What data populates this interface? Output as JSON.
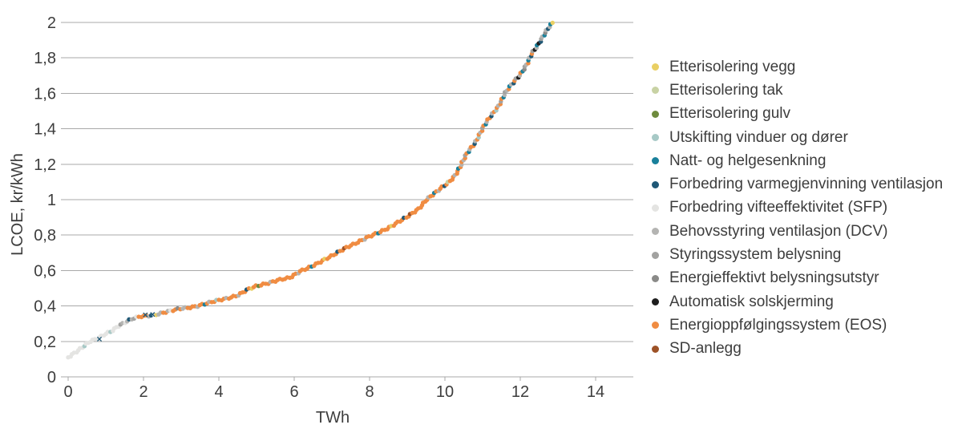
{
  "figure": {
    "background": "#ffffff",
    "text_color": "#3d3d3d",
    "grid_color": "#a9a9a9",
    "axis_color": "#a9a9a9"
  },
  "chart_data": {
    "type": "scatter",
    "title": "",
    "xlabel": "TWh",
    "ylabel": "LCOE, kr/kWh",
    "xlim": [
      0,
      15
    ],
    "ylim": [
      0,
      2
    ],
    "grid": "horizontal",
    "legend_position": "right",
    "x_tick_values": [
      0,
      2,
      4,
      6,
      8,
      10,
      12,
      14
    ],
    "x_tick_labels": [
      "0",
      "2",
      "4",
      "6",
      "8",
      "10",
      "12",
      "14"
    ],
    "y_tick_values": [
      0,
      0.2,
      0.4,
      0.6,
      0.8,
      1,
      1.2,
      1.4,
      1.6,
      1.8,
      2
    ],
    "y_tick_labels": [
      "0",
      "0,2",
      "0,4",
      "0,6",
      "0,8",
      "1",
      "1,2",
      "1,4",
      "1,6",
      "1,8",
      "2"
    ],
    "palette": {
      "vegg": "#e9cf63",
      "tak": "#c8d2a4",
      "gulv": "#6e8b3d",
      "vinduer": "#a7c9c6",
      "natt": "#19809b",
      "varme": "#1f5876",
      "sfp": "#e4e4e2",
      "dcv": "#b4b4b2",
      "styring": "#a2a2a0",
      "belysning": "#8a8a88",
      "sol": "#1d1d1d",
      "eos": "#f08c42",
      "sd": "#9d5227"
    },
    "legend": [
      {
        "label": "Etterisolering vegg",
        "color_key": "vegg"
      },
      {
        "label": "Etterisolering tak",
        "color_key": "tak"
      },
      {
        "label": "Etterisolering gulv",
        "color_key": "gulv"
      },
      {
        "label": "Utskifting vinduer og dører",
        "color_key": "vinduer"
      },
      {
        "label": "Natt- og helgesenkning",
        "color_key": "natt"
      },
      {
        "label": "Forbedring varmegjenvinning ventilasjon",
        "color_key": "varme"
      },
      {
        "label": "Forbedring vifteeffektivitet (SFP)",
        "color_key": "sfp"
      },
      {
        "label": "Behovsstyring ventilasjon (DCV)",
        "color_key": "dcv"
      },
      {
        "label": "Styringssystem belysning",
        "color_key": "styring"
      },
      {
        "label": "Energieffektivt belysningsutstyr",
        "color_key": "belysning"
      },
      {
        "label": "Automatisk solskjerming",
        "color_key": "sol"
      },
      {
        "label": "Energioppfølgingssystem (EOS)",
        "color_key": "eos"
      },
      {
        "label": "SD-anlegg",
        "color_key": "sd"
      }
    ],
    "curve_anchors": [
      [
        0,
        0.11
      ],
      [
        0.15,
        0.135
      ],
      [
        0.35,
        0.165
      ],
      [
        0.6,
        0.2
      ],
      [
        0.8,
        0.215
      ],
      [
        1.0,
        0.245
      ],
      [
        1.15,
        0.26
      ],
      [
        1.3,
        0.285
      ],
      [
        1.45,
        0.3
      ],
      [
        1.6,
        0.315
      ],
      [
        1.75,
        0.33
      ],
      [
        1.95,
        0.342
      ],
      [
        2.3,
        0.352
      ],
      [
        2.6,
        0.365
      ],
      [
        3.0,
        0.385
      ],
      [
        3.4,
        0.4
      ],
      [
        3.8,
        0.42
      ],
      [
        4.2,
        0.443
      ],
      [
        4.5,
        0.462
      ],
      [
        4.75,
        0.49
      ],
      [
        5.0,
        0.51
      ],
      [
        5.3,
        0.53
      ],
      [
        5.55,
        0.548
      ],
      [
        5.9,
        0.558
      ],
      [
        6.2,
        0.6
      ],
      [
        6.6,
        0.64
      ],
      [
        7.0,
        0.68
      ],
      [
        7.4,
        0.735
      ],
      [
        7.8,
        0.77
      ],
      [
        8.1,
        0.8
      ],
      [
        8.5,
        0.843
      ],
      [
        9.0,
        0.9
      ],
      [
        9.3,
        0.95
      ],
      [
        9.5,
        1.0
      ],
      [
        9.8,
        1.045
      ],
      [
        10.1,
        1.1
      ],
      [
        10.25,
        1.135
      ],
      [
        10.45,
        1.2
      ],
      [
        10.6,
        1.265
      ],
      [
        10.8,
        1.325
      ],
      [
        11.0,
        1.4
      ],
      [
        11.2,
        1.465
      ],
      [
        11.4,
        1.525
      ],
      [
        11.6,
        1.6
      ],
      [
        11.8,
        1.655
      ],
      [
        12.0,
        1.71
      ],
      [
        12.2,
        1.775
      ],
      [
        12.32,
        1.825
      ],
      [
        12.45,
        1.865
      ],
      [
        12.6,
        1.925
      ],
      [
        12.72,
        1.965
      ],
      [
        12.88,
        2.0
      ]
    ],
    "color_segments": [
      {
        "from": 0,
        "to": 1.35,
        "pattern": [
          "sfp",
          "sfp",
          "sfp",
          "sfp",
          "sfp",
          "sfp",
          "sfp",
          "sfp",
          "vinduer",
          "sfp",
          "sfp",
          "sfp"
        ]
      },
      {
        "from": 1.35,
        "to": 1.85,
        "pattern": [
          "styring",
          "dcv",
          "sfp",
          "dcv",
          "varme",
          "dcv",
          "styring",
          "sfp",
          "dcv"
        ]
      },
      {
        "from": 1.85,
        "to": 2.08,
        "pattern": [
          "eos",
          "eos",
          "eos",
          "eos",
          "natt",
          "eos"
        ]
      },
      {
        "from": 2.08,
        "to": 2.45,
        "pattern": [
          "dcv",
          "varme",
          "sfp",
          "vegg",
          "dcv",
          "sfp",
          "styring"
        ]
      },
      {
        "from": 2.45,
        "to": 3.2,
        "pattern": [
          "dcv",
          "eos",
          "eos",
          "dcv",
          "sfp",
          "eos",
          "eos",
          "belysning",
          "eos",
          "dcv"
        ]
      },
      {
        "from": 3.2,
        "to": 4.2,
        "pattern": [
          "eos",
          "eos",
          "eos",
          "dcv",
          "eos",
          "eos",
          "natt",
          "eos",
          "dcv",
          "eos",
          "eos",
          "vinduer"
        ]
      },
      {
        "from": 4.2,
        "to": 5.6,
        "pattern": [
          "eos",
          "eos",
          "eos",
          "eos",
          "dcv",
          "eos",
          "eos",
          "eos",
          "varme",
          "eos",
          "vegg",
          "eos",
          "eos",
          "gulv"
        ]
      },
      {
        "from": 5.6,
        "to": 9.4,
        "pattern": [
          "eos",
          "eos",
          "eos",
          "eos",
          "eos",
          "eos",
          "eos",
          "eos",
          "dcv",
          "eos",
          "eos",
          "eos",
          "eos",
          "eos",
          "natt",
          "eos",
          "eos",
          "eos",
          "eos",
          "eos",
          "vegg",
          "eos",
          "eos",
          "eos",
          "eos",
          "eos",
          "varme",
          "eos",
          "eos",
          "sd"
        ]
      },
      {
        "from": 9.4,
        "to": 10.5,
        "pattern": [
          "eos",
          "eos",
          "eos",
          "dcv",
          "eos",
          "eos",
          "natt",
          "eos",
          "dcv",
          "eos",
          "eos",
          "varme",
          "eos",
          "tak"
        ]
      },
      {
        "from": 10.5,
        "to": 11.6,
        "pattern": [
          "dcv",
          "eos",
          "styring",
          "eos",
          "natt",
          "dcv",
          "eos",
          "eos",
          "varme",
          "dcv",
          "eos",
          "vinduer",
          "eos"
        ]
      },
      {
        "from": 11.6,
        "to": 12.4,
        "pattern": [
          "styring",
          "dcv",
          "eos",
          "natt",
          "dcv",
          "varme",
          "eos",
          "styring",
          "sol",
          "dcv",
          "eos",
          "natt",
          "belysning"
        ]
      },
      {
        "from": 12.4,
        "to": 12.82,
        "pattern": [
          "dcv",
          "natt",
          "sol",
          "varme",
          "styring",
          "dcv",
          "natt",
          "belysning",
          "dcv",
          "varme"
        ]
      },
      {
        "from": 12.82,
        "to": 13.0,
        "pattern": [
          "vegg",
          "vegg"
        ]
      }
    ],
    "cross_markers": [
      {
        "x": 0.83,
        "y": 0.213
      },
      {
        "x": 2.05,
        "y": 0.35
      },
      {
        "x": 2.24,
        "y": 0.352
      }
    ]
  }
}
